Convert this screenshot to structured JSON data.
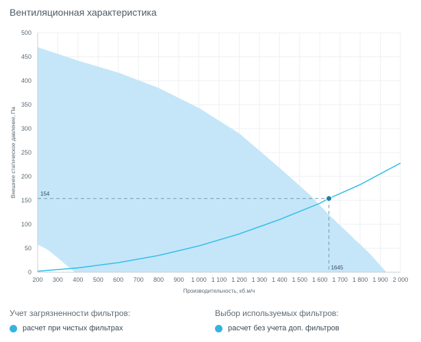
{
  "page": {
    "title": "Вентиляционная характеристика"
  },
  "filters": {
    "contamination_label": "Учет загрязненности фильтров:",
    "contamination_option": "расчет при чистых фильтрах",
    "selection_label": "Выбор используемых фильтров:",
    "selection_option": "расчет без учета доп. фильтров"
  },
  "colors": {
    "area_fill": "#c5e6f8",
    "curve": "#35c0ea",
    "marker": "#1f7fa5",
    "dashed": "#6f9ab0",
    "legend_dot": "#34b3e2"
  },
  "chart_data": {
    "type": "area",
    "xlabel": "Производительность, кб.м/ч",
    "ylabel": "Внешнее статическое давление, Па",
    "xlim": [
      200,
      2000
    ],
    "ylim": [
      0,
      500
    ],
    "x_ticks": [
      200,
      300,
      400,
      500,
      600,
      700,
      800,
      900,
      1000,
      1100,
      1200,
      1300,
      1400,
      1500,
      1600,
      1700,
      1800,
      1900,
      2000
    ],
    "x_tick_labels": [
      "200",
      "300",
      "400",
      "500",
      "600",
      "700",
      "800",
      "900",
      "1 000",
      "1 100",
      "1 200",
      "1 300",
      "1 400",
      "1 500",
      "1 600",
      "1 700",
      "1 800",
      "1 900",
      "2 000"
    ],
    "y_ticks": [
      0,
      50,
      100,
      150,
      200,
      250,
      300,
      350,
      400,
      450,
      500
    ],
    "y_tick_labels": [
      "0",
      "50",
      "100",
      "150",
      "200",
      "250",
      "300",
      "350",
      "400",
      "450",
      "500"
    ],
    "grid": true,
    "operating_area": {
      "upper_boundary": {
        "x": [
          200,
          400,
          600,
          800,
          1000,
          1200,
          1400,
          1550,
          1650,
          1750,
          1850,
          1930
        ],
        "y": [
          470,
          442,
          417,
          385,
          343,
          290,
          218,
          162,
          118,
          78,
          38,
          0
        ]
      },
      "lower_boundary": {
        "x": [
          200,
          250,
          300,
          350,
          385
        ],
        "y": [
          58,
          47,
          30,
          12,
          0
        ]
      }
    },
    "series": [
      {
        "type": "line",
        "x": [
          200,
          400,
          600,
          800,
          1000,
          1200,
          1400,
          1600,
          1645,
          1800,
          2000
        ],
        "y": [
          2,
          9,
          20,
          35,
          55,
          80,
          110,
          144,
          154,
          183,
          228
        ]
      }
    ],
    "operating_point": {
      "x": 1645,
      "y": 154
    },
    "annotations": {
      "x_value": "1645",
      "y_value": "154"
    }
  }
}
